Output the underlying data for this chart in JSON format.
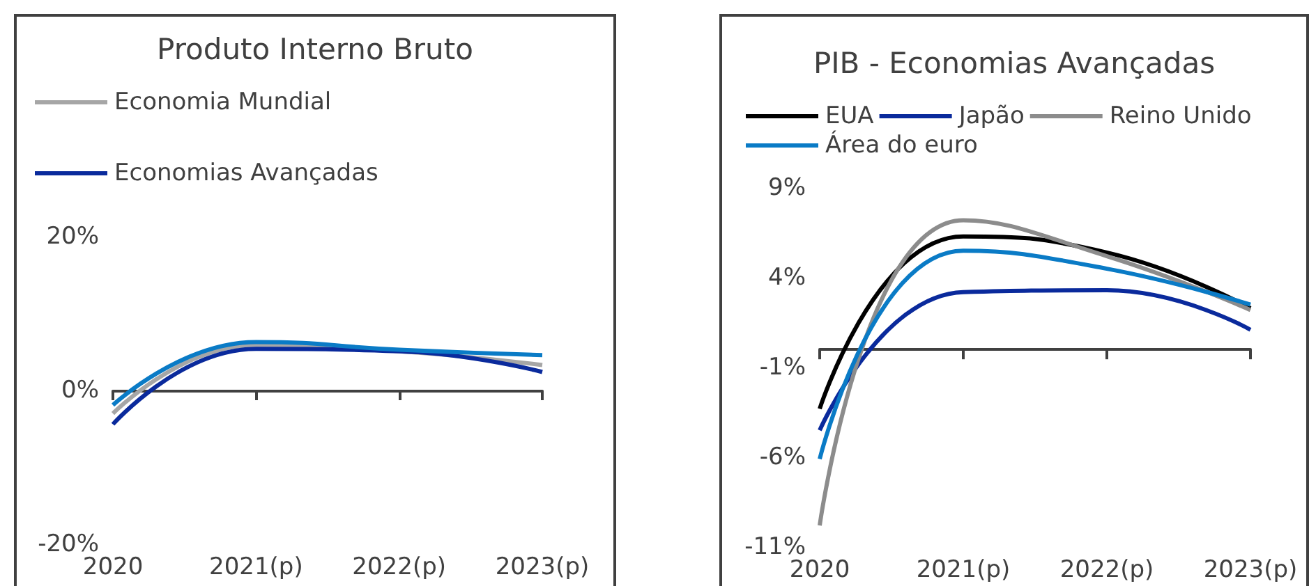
{
  "chart_data": [
    {
      "type": "line",
      "title": "Produto Interno Bruto",
      "categories": [
        "2020",
        "2021(p)",
        "2022(p)",
        "2023(p)"
      ],
      "series": [
        {
          "name": "Economia Mundial",
          "color": "#a6a6a6",
          "values": [
            -3.0,
            5.9,
            5.1,
            3.3
          ]
        },
        {
          "name": "Economias Avançadas",
          "color": "#0a2a9c",
          "values": [
            -4.4,
            5.4,
            5.1,
            2.4
          ]
        },
        {
          "color": "#0a7bc6",
          "values": [
            -1.9,
            6.3,
            5.3,
            4.6
          ]
        }
      ],
      "ylim": [
        -20,
        20
      ],
      "yticks": [
        {
          "value": -20,
          "label": "-20%"
        },
        {
          "value": 0,
          "label": "0%"
        },
        {
          "value": 20,
          "label": "20%"
        }
      ],
      "legend": "top left",
      "marker": "none"
    },
    {
      "type": "line",
      "title": "PIB - Economias Avançadas",
      "categories": [
        "2020",
        "2021(p)",
        "2022(p)",
        "2023(p)"
      ],
      "series": [
        {
          "name": "EUA",
          "color": "#000000",
          "values": [
            -3.3,
            6.3,
            5.4,
            2.3
          ]
        },
        {
          "name": "Japão",
          "color": "#0a2a9c",
          "values": [
            -4.5,
            3.2,
            3.3,
            1.1
          ]
        },
        {
          "name": "Reino Unido",
          "color": "#8c8c8c",
          "values": [
            -9.8,
            7.2,
            5.2,
            2.2
          ]
        },
        {
          "name": "Área do euro",
          "color": "#0a7bc6",
          "values": [
            -6.1,
            5.5,
            4.5,
            2.5
          ]
        }
      ],
      "ylim": [
        -11,
        9
      ],
      "yticks": [
        {
          "value": -11,
          "label": "-11%"
        },
        {
          "value": -6,
          "label": "-6%"
        },
        {
          "value": -1,
          "label": "-1%"
        },
        {
          "value": 4,
          "label": "4%"
        },
        {
          "value": 9,
          "label": "9%"
        }
      ],
      "legend": "top",
      "marker": "none"
    }
  ]
}
